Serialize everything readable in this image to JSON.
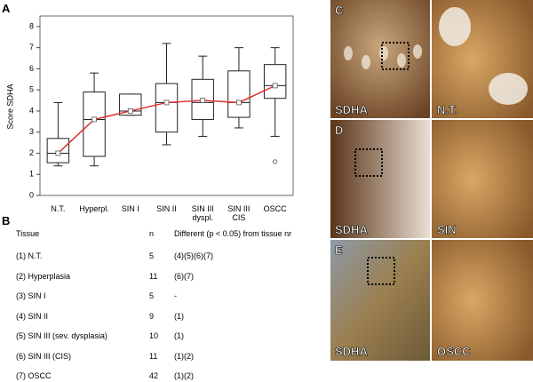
{
  "panels": {
    "a": "A",
    "b": "B",
    "c": "C",
    "d": "D",
    "e": "E"
  },
  "chart_data": {
    "type": "box",
    "ylabel": "Score SDHA",
    "categories": [
      "N.T.",
      "Hyperpl.",
      "SIN I",
      "SIN II",
      "SIN III dyspl.",
      "SIN III CIS",
      "OSCC"
    ],
    "whisker_low": [
      1.4,
      1.4,
      3.8,
      2.4,
      2.8,
      3.2,
      2.8
    ],
    "q1": [
      1.55,
      1.85,
      3.8,
      3.0,
      3.6,
      3.7,
      4.6
    ],
    "median": [
      2.0,
      3.6,
      4.0,
      4.4,
      4.4,
      4.4,
      5.2
    ],
    "q3": [
      2.7,
      4.9,
      4.8,
      5.3,
      5.5,
      5.9,
      6.2
    ],
    "whisker_high": [
      4.4,
      5.8,
      4.8,
      7.2,
      6.6,
      7.0,
      7.0
    ],
    "mean": [
      2.0,
      3.6,
      4.0,
      4.4,
      4.5,
      4.4,
      5.2
    ],
    "outliers": [
      [],
      [],
      [],
      [],
      [],
      [],
      [
        1.6
      ]
    ],
    "mean_color": "#e03030",
    "ylim": [
      0,
      8.5
    ],
    "yticks": [
      0,
      1,
      2,
      3,
      4,
      5,
      6,
      7,
      8
    ]
  },
  "table": {
    "header": [
      "Tissue",
      "n",
      "Different (p < 0.05) from tissue nr"
    ],
    "rows": [
      [
        "(1) N.T.",
        "5",
        "(4)(5)(6)(7)"
      ],
      [
        "(2) Hyperplasia",
        "11",
        "(6)(7)"
      ],
      [
        "(3) SIN I",
        "5",
        "-"
      ],
      [
        "(4) SIN II",
        "9",
        "(1)"
      ],
      [
        "(5) SIN III (sev. dysplasia)",
        "10",
        "(1)"
      ],
      [
        "(6) SIN III (CIS)",
        "11",
        "(1)(2)"
      ],
      [
        "(7) OSCC",
        "42",
        "(1)(2)"
      ]
    ]
  },
  "images": {
    "c_left": "SDHA",
    "c_right": "N.T.",
    "d_left": "SDHA",
    "d_right": "SIN",
    "e_left": "SDHA",
    "e_right": "OSCC"
  }
}
